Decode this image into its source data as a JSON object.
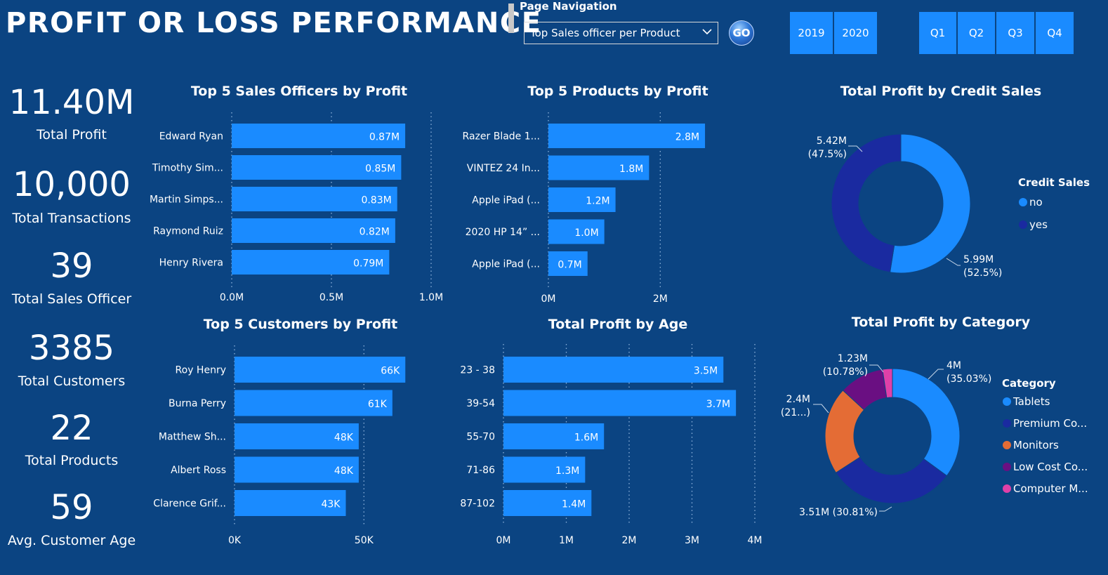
{
  "header": {
    "title": "PROFIT OR LOSS PERFORMANCE",
    "nav_label": "Page Navigation",
    "nav_selected": "Top Sales officer per Product",
    "go_label": "GO",
    "years": [
      "2019",
      "2020"
    ],
    "quarters": [
      "Q1",
      "Q2",
      "Q3",
      "Q4"
    ]
  },
  "kpis": [
    {
      "value": "11.40M",
      "label": "Total Profit"
    },
    {
      "value": "10,000",
      "label": "Total Transactions"
    },
    {
      "value": "39",
      "label": "Total Sales Officer"
    },
    {
      "value": "3385",
      "label": "Total Customers"
    },
    {
      "value": "22",
      "label": "Total Products"
    },
    {
      "value": "59",
      "label": "Avg. Customer Age"
    }
  ],
  "colors": {
    "background": "#0b4482",
    "bar": "#1a8bff",
    "grid": "#8fb4dc"
  },
  "chart_data": [
    {
      "id": "officers",
      "type": "bar",
      "orientation": "horizontal",
      "title": "Top 5 Sales Officers by Profit",
      "categories": [
        "Edward Ryan",
        "Timothy Sim...",
        "Martin Simps...",
        "Raymond Ruiz",
        "Henry Rivera"
      ],
      "values": [
        0.87,
        0.85,
        0.83,
        0.82,
        0.79
      ],
      "data_labels": [
        "0.87M",
        "0.85M",
        "0.83M",
        "0.82M",
        "0.79M"
      ],
      "xlim": [
        0,
        1.0
      ],
      "ticks": [
        0,
        0.5,
        1.0
      ],
      "tick_labels": [
        "0.0M",
        "0.5M",
        "1.0M"
      ],
      "grid": true
    },
    {
      "id": "products",
      "type": "bar",
      "orientation": "horizontal",
      "title": "Top 5 Products by Profit",
      "categories": [
        "Razer Blade 1...",
        "VINTEZ 24 In...",
        "Apple iPad (...",
        "2020 HP 14” ...",
        "Apple iPad (..."
      ],
      "values": [
        2.8,
        1.8,
        1.2,
        1.0,
        0.7
      ],
      "data_labels": [
        "2.8M",
        "1.8M",
        "1.2M",
        "1.0M",
        "0.7M"
      ],
      "xlim": [
        0,
        3.0
      ],
      "ticks": [
        0,
        2
      ],
      "tick_labels": [
        "0M",
        "2M"
      ],
      "grid": true
    },
    {
      "id": "customers",
      "type": "bar",
      "orientation": "horizontal",
      "title": "Top 5 Customers by Profit",
      "categories": [
        "Roy Henry",
        "Burna Perry",
        "Matthew Sh...",
        "Albert Ross",
        "Clarence Grif..."
      ],
      "values": [
        66,
        61,
        48,
        48,
        43
      ],
      "data_labels": [
        "66K",
        "61K",
        "48K",
        "48K",
        "43K"
      ],
      "xlim": [
        0,
        70
      ],
      "ticks": [
        0,
        50
      ],
      "tick_labels": [
        "0K",
        "50K"
      ],
      "grid": true
    },
    {
      "id": "age",
      "type": "bar",
      "orientation": "horizontal",
      "title": "Total Profit by Age",
      "categories": [
        "23 - 38",
        "39-54",
        "55-70",
        "71-86",
        "87-102"
      ],
      "values": [
        3.5,
        3.7,
        1.6,
        1.3,
        1.4
      ],
      "data_labels": [
        "3.5M",
        "3.7M",
        "1.6M",
        "1.3M",
        "1.4M"
      ],
      "xlim": [
        0,
        4
      ],
      "ticks": [
        0,
        1,
        2,
        3,
        4
      ],
      "tick_labels": [
        "0M",
        "1M",
        "2M",
        "3M",
        "4M"
      ],
      "grid": true
    },
    {
      "id": "credit",
      "type": "pie",
      "donut": true,
      "title": "Total Profit by Credit Sales",
      "legend_title": "Credit Sales",
      "legend_position": "right",
      "slices": [
        {
          "name": "no",
          "value": 5.99,
          "label_line1": "5.99M",
          "label_line2": "(52.5%)",
          "color": "#1a8bff"
        },
        {
          "name": "yes",
          "value": 5.42,
          "label_line1": "5.42M",
          "label_line2": "(47.5%)",
          "color": "#1a2aa0"
        }
      ]
    },
    {
      "id": "category",
      "type": "pie",
      "donut": true,
      "title": "Total Profit by Category",
      "legend_title": "Category",
      "legend_position": "right",
      "slices": [
        {
          "name": "Tablets",
          "value": 4.0,
          "label_line1": "4M",
          "label_line2": "(35.03%)",
          "color": "#1a8bff"
        },
        {
          "name": "Premium Co...",
          "value": 3.51,
          "label_line1": "3.51M (30.81%)",
          "label_line2": "",
          "color": "#1a2aa0"
        },
        {
          "name": "Monitors",
          "value": 2.4,
          "label_line1": "2.4M",
          "label_line2": "(21...)",
          "color": "#e46c35"
        },
        {
          "name": "Low Cost Co...",
          "value": 1.23,
          "label_line1": "1.23M",
          "label_line2": "(10.78%)",
          "color": "#6a0f82"
        },
        {
          "name": "Computer M...",
          "value": 0.27,
          "label_line1": "",
          "label_line2": "",
          "color": "#e040a8"
        }
      ]
    }
  ]
}
